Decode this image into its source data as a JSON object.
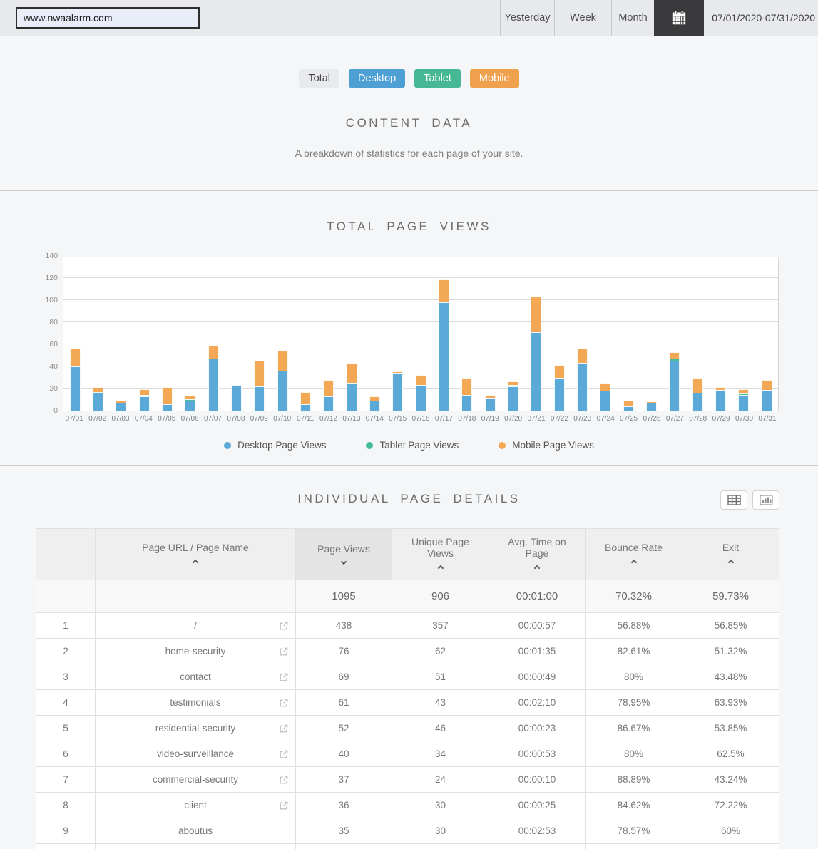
{
  "topbar": {
    "site_url": "www.nwaalarm.com",
    "buttons": {
      "yesterday": "Yesterday",
      "week": "Week",
      "month": "Month"
    },
    "date_range": "07/01/2020-07/31/2020"
  },
  "filters": {
    "total": {
      "label": "Total",
      "color": "#e9eaed"
    },
    "desktop": {
      "label": "Desktop",
      "color": "#4e9fd3"
    },
    "tablet": {
      "label": "Tablet",
      "color": "#47b894"
    },
    "mobile": {
      "label": "Mobile",
      "color": "#f0a14e"
    }
  },
  "content_header": {
    "title": "CONTENT DATA",
    "subtitle": "A breakdown of statistics for each page of your site."
  },
  "chart_data": {
    "type": "bar",
    "stacked": true,
    "title": "TOTAL PAGE VIEWS",
    "x": [
      "07/01",
      "07/02",
      "07/03",
      "07/04",
      "07/05",
      "07/06",
      "07/07",
      "07/08",
      "07/09",
      "07/10",
      "07/11",
      "07/12",
      "07/13",
      "07/14",
      "07/15",
      "07/16",
      "07/17",
      "07/18",
      "07/19",
      "07/20",
      "07/21",
      "07/22",
      "07/23",
      "07/24",
      "07/25",
      "07/26",
      "07/27",
      "07/28",
      "07/29",
      "07/30",
      "07/31"
    ],
    "series": [
      {
        "name": "Desktop Page Views",
        "color": "#5aa9d8",
        "values": [
          40,
          17,
          7,
          13,
          6,
          9,
          47,
          23,
          22,
          36,
          6,
          13,
          25,
          9,
          34,
          23,
          98,
          14,
          11,
          22,
          71,
          30,
          43,
          18,
          4,
          7,
          45,
          16,
          19,
          14,
          19
        ]
      },
      {
        "name": "Tablet Page Views",
        "color": "#44bc9a",
        "values": [
          0,
          0,
          0,
          1,
          0,
          1,
          0,
          0,
          0,
          0,
          0,
          0,
          0,
          0,
          0,
          0,
          0,
          0,
          0,
          1,
          0,
          0,
          0,
          0,
          0,
          0,
          2,
          0,
          0,
          1,
          0
        ]
      },
      {
        "name": "Mobile Page Views",
        "color": "#f2a854",
        "values": [
          16,
          4,
          2,
          5,
          15,
          3,
          12,
          0,
          23,
          18,
          11,
          15,
          18,
          4,
          1,
          9,
          21,
          16,
          3,
          3,
          32,
          11,
          13,
          7,
          5,
          1,
          6,
          14,
          2,
          4,
          9
        ]
      }
    ],
    "ylim": [
      0,
      140
    ],
    "yticks": [
      0,
      20,
      40,
      60,
      80,
      100,
      120,
      140
    ],
    "grid": true,
    "legend_position": "bottom"
  },
  "details_section": {
    "title": "INDIVIDUAL PAGE DETAILS"
  },
  "table": {
    "header": {
      "page_url_link": "Page URL",
      "page_name_rest": " / Page Name",
      "page_views": "Page Views",
      "unique_page_views": "Unique Page Views",
      "avg_time_on_page": "Avg. Time on Page",
      "bounce_rate": "Bounce Rate",
      "exit": "Exit"
    },
    "sort": {
      "active_column": "Page Views",
      "direction": "desc"
    },
    "summary": {
      "page_views": "1095",
      "unique_page_views": "906",
      "avg_time_on_page": "00:01:00",
      "bounce_rate": "70.32%",
      "exit": "59.73%"
    },
    "rows": [
      {
        "rank": "1",
        "page_name": "/",
        "external_link": true,
        "page_views": "438",
        "unique_page_views": "357",
        "avg_time_on_page": "00:00:57",
        "bounce_rate": "56.88%",
        "exit": "56.85%"
      },
      {
        "rank": "2",
        "page_name": "home-security",
        "external_link": true,
        "page_views": "76",
        "unique_page_views": "62",
        "avg_time_on_page": "00:01:35",
        "bounce_rate": "82.61%",
        "exit": "51.32%"
      },
      {
        "rank": "3",
        "page_name": "contact",
        "external_link": true,
        "page_views": "69",
        "unique_page_views": "51",
        "avg_time_on_page": "00:00:49",
        "bounce_rate": "80%",
        "exit": "43.48%"
      },
      {
        "rank": "4",
        "page_name": "testimonials",
        "external_link": true,
        "page_views": "61",
        "unique_page_views": "43",
        "avg_time_on_page": "00:02:10",
        "bounce_rate": "78.95%",
        "exit": "63.93%"
      },
      {
        "rank": "5",
        "page_name": "residential-security",
        "external_link": true,
        "page_views": "52",
        "unique_page_views": "46",
        "avg_time_on_page": "00:00:23",
        "bounce_rate": "86.67%",
        "exit": "53.85%"
      },
      {
        "rank": "6",
        "page_name": "video-surveillance",
        "external_link": true,
        "page_views": "40",
        "unique_page_views": "34",
        "avg_time_on_page": "00:00:53",
        "bounce_rate": "80%",
        "exit": "62.5%"
      },
      {
        "rank": "7",
        "page_name": "commercial-security",
        "external_link": true,
        "page_views": "37",
        "unique_page_views": "24",
        "avg_time_on_page": "00:00:10",
        "bounce_rate": "88.89%",
        "exit": "43.24%"
      },
      {
        "rank": "8",
        "page_name": "client",
        "external_link": true,
        "page_views": "36",
        "unique_page_views": "30",
        "avg_time_on_page": "00:00:25",
        "bounce_rate": "84.62%",
        "exit": "72.22%"
      },
      {
        "rank": "9",
        "page_name": "aboutus",
        "external_link": false,
        "page_views": "35",
        "unique_page_views": "30",
        "avg_time_on_page": "00:02:53",
        "bounce_rate": "78.57%",
        "exit": "60%"
      }
    ]
  }
}
